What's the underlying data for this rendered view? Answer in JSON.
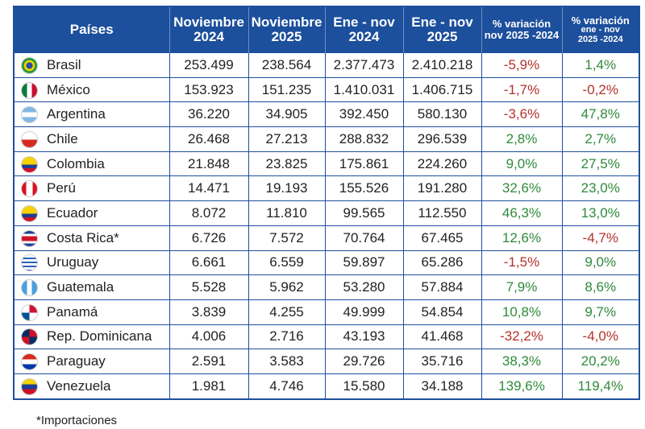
{
  "table": {
    "header": [
      "Países",
      [
        "Noviembre",
        "2024"
      ],
      [
        "Noviembre",
        "2025"
      ],
      [
        "Ene - nov",
        "2024"
      ],
      [
        "Ene - nov",
        "2025"
      ],
      [
        "% variación",
        "nov 2025 -2024"
      ],
      [
        "% variación",
        "ene - nov",
        "2025 -2024"
      ]
    ],
    "rows": [
      [
        "Brasil",
        "253.499",
        "238.564",
        "2.377.473",
        "2.410.218",
        "-5,9%",
        "1,4%"
      ],
      [
        "México",
        "153.923",
        "151.235",
        "1.410.031",
        "1.406.715",
        "-1,7%",
        "-0,2%"
      ],
      [
        "Argentina",
        "36.220",
        "34.905",
        "392.450",
        "580.130",
        "-3,6%",
        "47,8%"
      ],
      [
        "Chile",
        "26.468",
        "27.213",
        "288.832",
        "296.539",
        "2,8%",
        "2,7%"
      ],
      [
        "Colombia",
        "21.848",
        "23.825",
        "175.861",
        "224.260",
        "9,0%",
        "27,5%"
      ],
      [
        "Perú",
        "14.471",
        "19.193",
        "155.526",
        "191.280",
        "32,6%",
        "23,0%"
      ],
      [
        "Ecuador",
        "8.072",
        "11.810",
        "99.565",
        "112.550",
        "46,3%",
        "13,0%"
      ],
      [
        "Costa Rica*",
        "6.726",
        "7.572",
        "70.764",
        "67.465",
        "12,6%",
        "-4,7%"
      ],
      [
        "Uruguay",
        "6.661",
        "6.559",
        "59.897",
        "65.286",
        "-1,5%",
        "9,0%"
      ],
      [
        "Guatemala",
        "5.528",
        "5.962",
        "53.280",
        "57.884",
        "7,9%",
        "8,6%"
      ],
      [
        "Panamá",
        "3.839",
        "4.255",
        "49.999",
        "54.854",
        "10,8%",
        "9,7%"
      ],
      [
        "Rep. Dominicana",
        "4.006",
        "2.716",
        "43.193",
        "41.468",
        "-32,2%",
        "-4,0%"
      ],
      [
        "Paraguay",
        "2.591",
        "3.583",
        "29.726",
        "35.716",
        "38,3%",
        "20,2%"
      ],
      [
        "Venezuela",
        "1.981",
        "4.746",
        "15.580",
        "34.188",
        "139,6%",
        "119,4%"
      ]
    ]
  },
  "footnote": "*Importaciones"
}
